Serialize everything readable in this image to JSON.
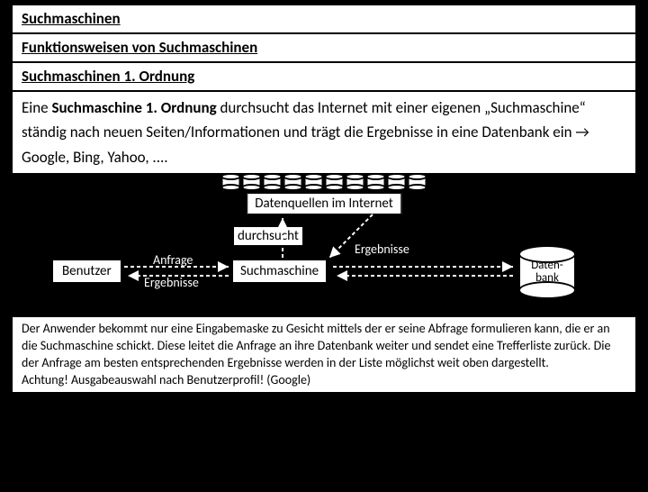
{
  "headings": {
    "h1": "Suchmaschinen",
    "h2": "Funktionsweisen von Suchmaschinen",
    "h3": "Suchmaschinen 1. Ordnung"
  },
  "paragraph1": {
    "pre": "Eine ",
    "bold": "Suchmaschine 1. Ordnung",
    "post": " durchsucht das Internet mit einer eigenen „Suchmaschine“  ständig nach neuen Seiten/Informationen und trägt die Ergebnisse in eine Datenbank ein → Google, Bing, Yahoo, ...."
  },
  "diagram": {
    "datasources_label": "Datenquellen im Internet",
    "small_db_count": 10,
    "user_label": "Benutzer",
    "engine_label": "Suchmaschine",
    "db_label_line1": "Daten-",
    "db_label_line2": "bank",
    "arrow_labels": {
      "anfrage": "Anfrage",
      "ergebnisse_left": "Ergebnisse",
      "durchsucht": "durchsucht",
      "ergebnisse_right": "Ergebnisse"
    },
    "colors": {
      "arrow": "#ffffff",
      "box_fill": "#ffffff",
      "box_border": "#000000",
      "bg": "#000000"
    }
  },
  "paragraph2": "Der Anwender bekommt nur eine Eingabemaske zu Gesicht mittels der er seine Abfrage formulieren kann, die er an die Suchmaschine schickt. Diese leitet die Anfrage an ihre Datenbank weiter und sendet eine Trefferliste zurück. Die der Anfrage am besten entsprechenden Ergebnisse werden in der Liste möglichst weit oben dargestellt.\nAchtung! Ausgabeauswahl nach Benutzerprofil! (Google)"
}
